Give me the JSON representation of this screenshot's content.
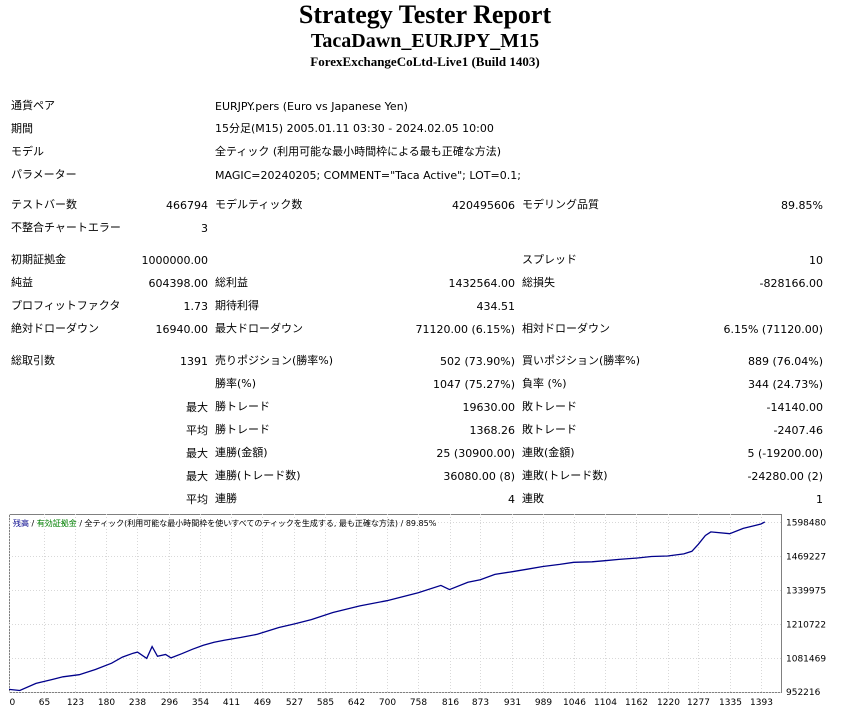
{
  "header": {
    "title": "Strategy Tester Report",
    "strategy": "TacaDawn_EURJPY_M15",
    "server": "ForexExchangeCoLtd-Live1 (Build 1403)"
  },
  "settings": {
    "symbol_label": "通貨ペア",
    "symbol": "EURJPY.pers (Euro vs Japanese Yen)",
    "period_label": "期間",
    "period": "15分足(M15) 2005.01.11 03:30 - 2024.02.05 10:00",
    "model_label": "モデル",
    "model": "全ティック (利用可能な最小時間枠による最も正確な方法)",
    "params_label": "パラメーター",
    "params": "MAGIC=20240205; COMMENT=\"Taca Active\"; LOT=0.1;"
  },
  "stats": {
    "bars_label": "テストバー数",
    "bars": "466794",
    "ticks_label": "モデルティック数",
    "ticks": "420495606",
    "quality_label": "モデリング品質",
    "quality": "89.85%",
    "mismatch_label": "不整合チャートエラー",
    "mismatch": "3",
    "deposit_label": "初期証拠金",
    "deposit": "1000000.00",
    "spread_label": "スプレッド",
    "spread": "10",
    "net_label": "純益",
    "net": "604398.00",
    "gross_profit_label": "総利益",
    "gross_profit": "1432564.00",
    "gross_loss_label": "総損失",
    "gross_loss": "-828166.00",
    "pf_label": "プロフィットファクタ",
    "pf": "1.73",
    "expected_label": "期待利得",
    "expected": "434.51",
    "abs_dd_label": "絶対ドローダウン",
    "abs_dd": "16940.00",
    "max_dd_label": "最大ドローダウン",
    "max_dd": "71120.00 (6.15%)",
    "rel_dd_label": "相対ドローダウン",
    "rel_dd": "6.15% (71120.00)",
    "total_label": "総取引数",
    "total": "1391",
    "short_label": "売りポジション(勝率%)",
    "short": "502 (73.90%)",
    "long_label": "買いポジション(勝率%)",
    "long": "889 (76.04%)",
    "win_rate_label": "勝率(%)",
    "win_rate": "1047 (75.27%)",
    "loss_rate_label": "負率 (%)",
    "loss_rate": "344 (24.73%)",
    "max_label": "最大",
    "avg_label": "平均",
    "max_win_label": "勝トレード",
    "max_win": "19630.00",
    "max_loss_label": "敗トレード",
    "max_loss": "-14140.00",
    "avg_win_label": "勝トレード",
    "avg_win": "1368.26",
    "avg_loss_label": "敗トレード",
    "avg_loss": "-2407.46",
    "max_cons_wins_money_label": "連勝(金額)",
    "max_cons_wins_money": "25 (30900.00)",
    "max_cons_losses_money_label": "連敗(金額)",
    "max_cons_losses_money": "5 (-19200.00)",
    "max_cons_profit_label": "連勝(トレード数)",
    "max_cons_profit": "36080.00 (8)",
    "max_cons_loss_label": "連敗(トレード数)",
    "max_cons_loss": "-24280.00 (2)",
    "avg_cons_wins_label": "連勝",
    "avg_cons_wins": "4",
    "avg_cons_losses_label": "連敗",
    "avg_cons_losses": "1"
  },
  "chart_data": {
    "type": "line",
    "legend": {
      "balance": "残高",
      "sep1": " / ",
      "margin": "有効証拠金",
      "sep2": " / ",
      "model": "全ティック(利用可能な最小時間枠を使いすべてのティックを生成する, 最も正確な方法)",
      "sep3": " / ",
      "quality": "89.85%"
    },
    "legend_placement": "top-left",
    "x_ticks": [
      "0",
      "65",
      "123",
      "180",
      "238",
      "296",
      "354",
      "411",
      "469",
      "527",
      "585",
      "642",
      "700",
      "758",
      "816",
      "873",
      "931",
      "989",
      "1046",
      "1104",
      "1162",
      "1220",
      "1277",
      "1335",
      "1393"
    ],
    "y_ticks": [
      "1598480",
      "1469227",
      "1339975",
      "1210722",
      "1081469",
      "952216"
    ],
    "x_range": [
      0,
      1430
    ],
    "y_range": [
      952216,
      1630000
    ],
    "grid": true,
    "series": [
      {
        "color": "#00008b",
        "x": [
          0,
          20,
          50,
          80,
          100,
          130,
          160,
          190,
          210,
          230,
          238,
          255,
          265,
          275,
          290,
          300,
          320,
          340,
          360,
          380,
          400,
          430,
          460,
          480,
          500,
          530,
          560,
          600,
          650,
          700,
          758,
          800,
          816,
          850,
          873,
          900,
          931,
          960,
          989,
          1020,
          1046,
          1080,
          1104,
          1130,
          1162,
          1190,
          1220,
          1250,
          1265,
          1277,
          1290,
          1300,
          1335,
          1360,
          1380,
          1393,
          1400
        ],
        "y": [
          962000,
          958000,
          985000,
          1000000,
          1010000,
          1018000,
          1038000,
          1062000,
          1085000,
          1100000,
          1104000,
          1080000,
          1125000,
          1088000,
          1095000,
          1082000,
          1098000,
          1115000,
          1130000,
          1142000,
          1150000,
          1160000,
          1172000,
          1185000,
          1198000,
          1212000,
          1228000,
          1255000,
          1280000,
          1300000,
          1330000,
          1358000,
          1342000,
          1370000,
          1380000,
          1400000,
          1410000,
          1420000,
          1430000,
          1438000,
          1446000,
          1448000,
          1452000,
          1457000,
          1462000,
          1468000,
          1470000,
          1478000,
          1488000,
          1515000,
          1548000,
          1562000,
          1555000,
          1575000,
          1585000,
          1592000,
          1600000
        ]
      }
    ]
  }
}
